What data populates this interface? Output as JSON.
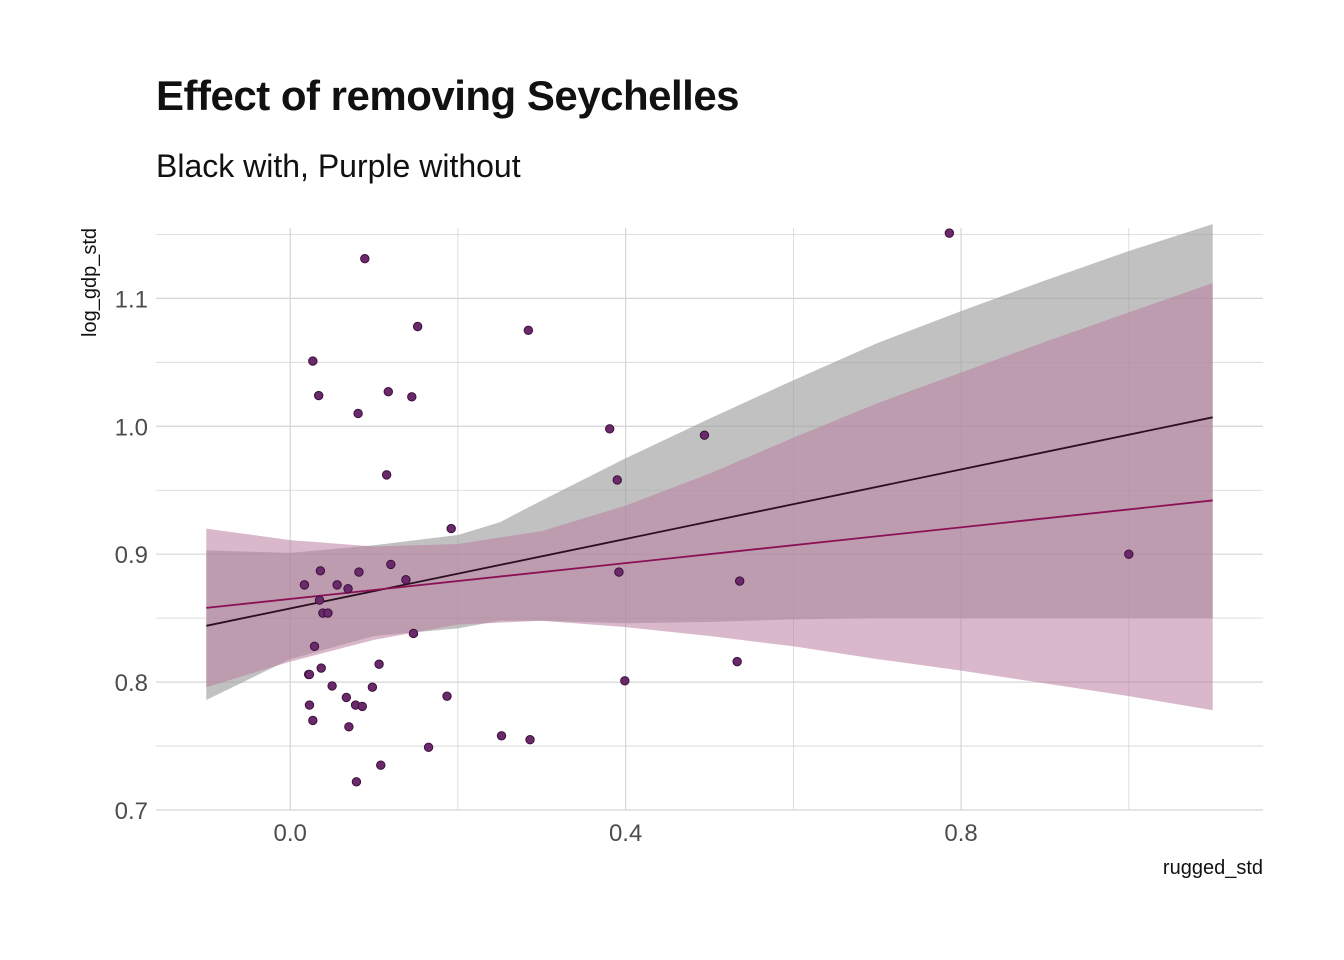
{
  "chart_data": {
    "type": "scatter",
    "title": "Effect of removing Seychelles",
    "subtitle": "Black with, Purple without",
    "xlabel": "rugged_std",
    "ylabel": "log_gdp_std",
    "xlim": [
      -0.16,
      1.16
    ],
    "ylim": [
      0.7,
      1.155
    ],
    "x_ticks": [
      0.0,
      0.4,
      0.8
    ],
    "x_tick_labels": [
      "0.0",
      "0.4",
      "0.8"
    ],
    "y_ticks": [
      0.7,
      0.8,
      0.9,
      1.0,
      1.1
    ],
    "y_tick_labels": [
      "0.7",
      "0.8",
      "0.9",
      "1.0",
      "1.1"
    ],
    "grid": true,
    "colors": {
      "point_fill": "#6a2a6a",
      "point_stroke": "#3d0f3d",
      "line_with": "#2a0f22",
      "line_without": "#8b1157",
      "band_with": "#a0a0a0",
      "band_without": "#b97ea0",
      "grid": "#d5d5d5"
    },
    "points": [
      {
        "x": 0.017,
        "y": 0.876
      },
      {
        "x": 0.022,
        "y": 0.806
      },
      {
        "x": 0.023,
        "y": 0.806
      },
      {
        "x": 0.023,
        "y": 0.782
      },
      {
        "x": 0.027,
        "y": 0.77
      },
      {
        "x": 0.027,
        "y": 1.051
      },
      {
        "x": 0.029,
        "y": 0.828
      },
      {
        "x": 0.034,
        "y": 1.024
      },
      {
        "x": 0.035,
        "y": 0.864
      },
      {
        "x": 0.036,
        "y": 0.887
      },
      {
        "x": 0.037,
        "y": 0.811
      },
      {
        "x": 0.039,
        "y": 0.854
      },
      {
        "x": 0.045,
        "y": 0.854
      },
      {
        "x": 0.05,
        "y": 0.797
      },
      {
        "x": 0.056,
        "y": 0.876
      },
      {
        "x": 0.067,
        "y": 0.788
      },
      {
        "x": 0.069,
        "y": 0.873
      },
      {
        "x": 0.07,
        "y": 0.765
      },
      {
        "x": 0.078,
        "y": 0.782
      },
      {
        "x": 0.079,
        "y": 0.722
      },
      {
        "x": 0.081,
        "y": 1.01
      },
      {
        "x": 0.082,
        "y": 0.886
      },
      {
        "x": 0.086,
        "y": 0.781
      },
      {
        "x": 0.089,
        "y": 1.131
      },
      {
        "x": 0.098,
        "y": 0.796
      },
      {
        "x": 0.106,
        "y": 0.814
      },
      {
        "x": 0.108,
        "y": 0.735
      },
      {
        "x": 0.115,
        "y": 0.962
      },
      {
        "x": 0.117,
        "y": 1.027
      },
      {
        "x": 0.12,
        "y": 0.892
      },
      {
        "x": 0.138,
        "y": 0.88
      },
      {
        "x": 0.145,
        "y": 1.023
      },
      {
        "x": 0.147,
        "y": 0.838
      },
      {
        "x": 0.152,
        "y": 1.078
      },
      {
        "x": 0.165,
        "y": 0.749
      },
      {
        "x": 0.187,
        "y": 0.789
      },
      {
        "x": 0.192,
        "y": 0.92
      },
      {
        "x": 0.252,
        "y": 0.758
      },
      {
        "x": 0.284,
        "y": 1.075
      },
      {
        "x": 0.286,
        "y": 0.755
      },
      {
        "x": 0.381,
        "y": 0.998
      },
      {
        "x": 0.39,
        "y": 0.958
      },
      {
        "x": 0.392,
        "y": 0.886
      },
      {
        "x": 0.399,
        "y": 0.801
      },
      {
        "x": 0.494,
        "y": 0.993
      },
      {
        "x": 0.533,
        "y": 0.816
      },
      {
        "x": 0.536,
        "y": 0.879
      },
      {
        "x": 0.786,
        "y": 1.151
      },
      {
        "x": 1.0,
        "y": 0.9
      }
    ],
    "series": [
      {
        "key": "with",
        "line": [
          {
            "x": -0.1,
            "y": 0.844
          },
          {
            "x": 1.1,
            "y": 1.007
          }
        ],
        "band": [
          {
            "x": -0.1,
            "upper": 0.903,
            "lower": 0.786
          },
          {
            "x": 0.0,
            "upper": 0.901,
            "lower": 0.818
          },
          {
            "x": 0.1,
            "upper": 0.907,
            "lower": 0.836
          },
          {
            "x": 0.2,
            "upper": 0.915,
            "lower": 0.842
          },
          {
            "x": 0.25,
            "upper": 0.925,
            "lower": 0.848
          },
          {
            "x": 0.3,
            "upper": 0.942,
            "lower": 0.848
          },
          {
            "x": 0.4,
            "upper": 0.975,
            "lower": 0.846
          },
          {
            "x": 0.5,
            "upper": 1.006,
            "lower": 0.847
          },
          {
            "x": 0.6,
            "upper": 1.036,
            "lower": 0.849
          },
          {
            "x": 0.7,
            "upper": 1.065,
            "lower": 0.85
          },
          {
            "x": 0.8,
            "upper": 1.09,
            "lower": 0.85
          },
          {
            "x": 0.9,
            "upper": 1.114,
            "lower": 0.85
          },
          {
            "x": 1.0,
            "upper": 1.137,
            "lower": 0.85
          },
          {
            "x": 1.1,
            "upper": 1.158,
            "lower": 0.85
          }
        ]
      },
      {
        "key": "without",
        "line": [
          {
            "x": -0.1,
            "y": 0.858
          },
          {
            "x": 1.1,
            "y": 0.942
          }
        ],
        "band": [
          {
            "x": -0.1,
            "upper": 0.92,
            "lower": 0.796
          },
          {
            "x": 0.0,
            "upper": 0.911,
            "lower": 0.816
          },
          {
            "x": 0.1,
            "upper": 0.906,
            "lower": 0.833
          },
          {
            "x": 0.2,
            "upper": 0.908,
            "lower": 0.845
          },
          {
            "x": 0.3,
            "upper": 0.918,
            "lower": 0.848
          },
          {
            "x": 0.4,
            "upper": 0.938,
            "lower": 0.843
          },
          {
            "x": 0.5,
            "upper": 0.963,
            "lower": 0.836
          },
          {
            "x": 0.6,
            "upper": 0.991,
            "lower": 0.828
          },
          {
            "x": 0.7,
            "upper": 1.018,
            "lower": 0.818
          },
          {
            "x": 0.8,
            "upper": 1.042,
            "lower": 0.809
          },
          {
            "x": 0.9,
            "upper": 1.066,
            "lower": 0.799
          },
          {
            "x": 1.0,
            "upper": 1.089,
            "lower": 0.789
          },
          {
            "x": 1.1,
            "upper": 1.112,
            "lower": 0.778
          }
        ]
      }
    ]
  }
}
